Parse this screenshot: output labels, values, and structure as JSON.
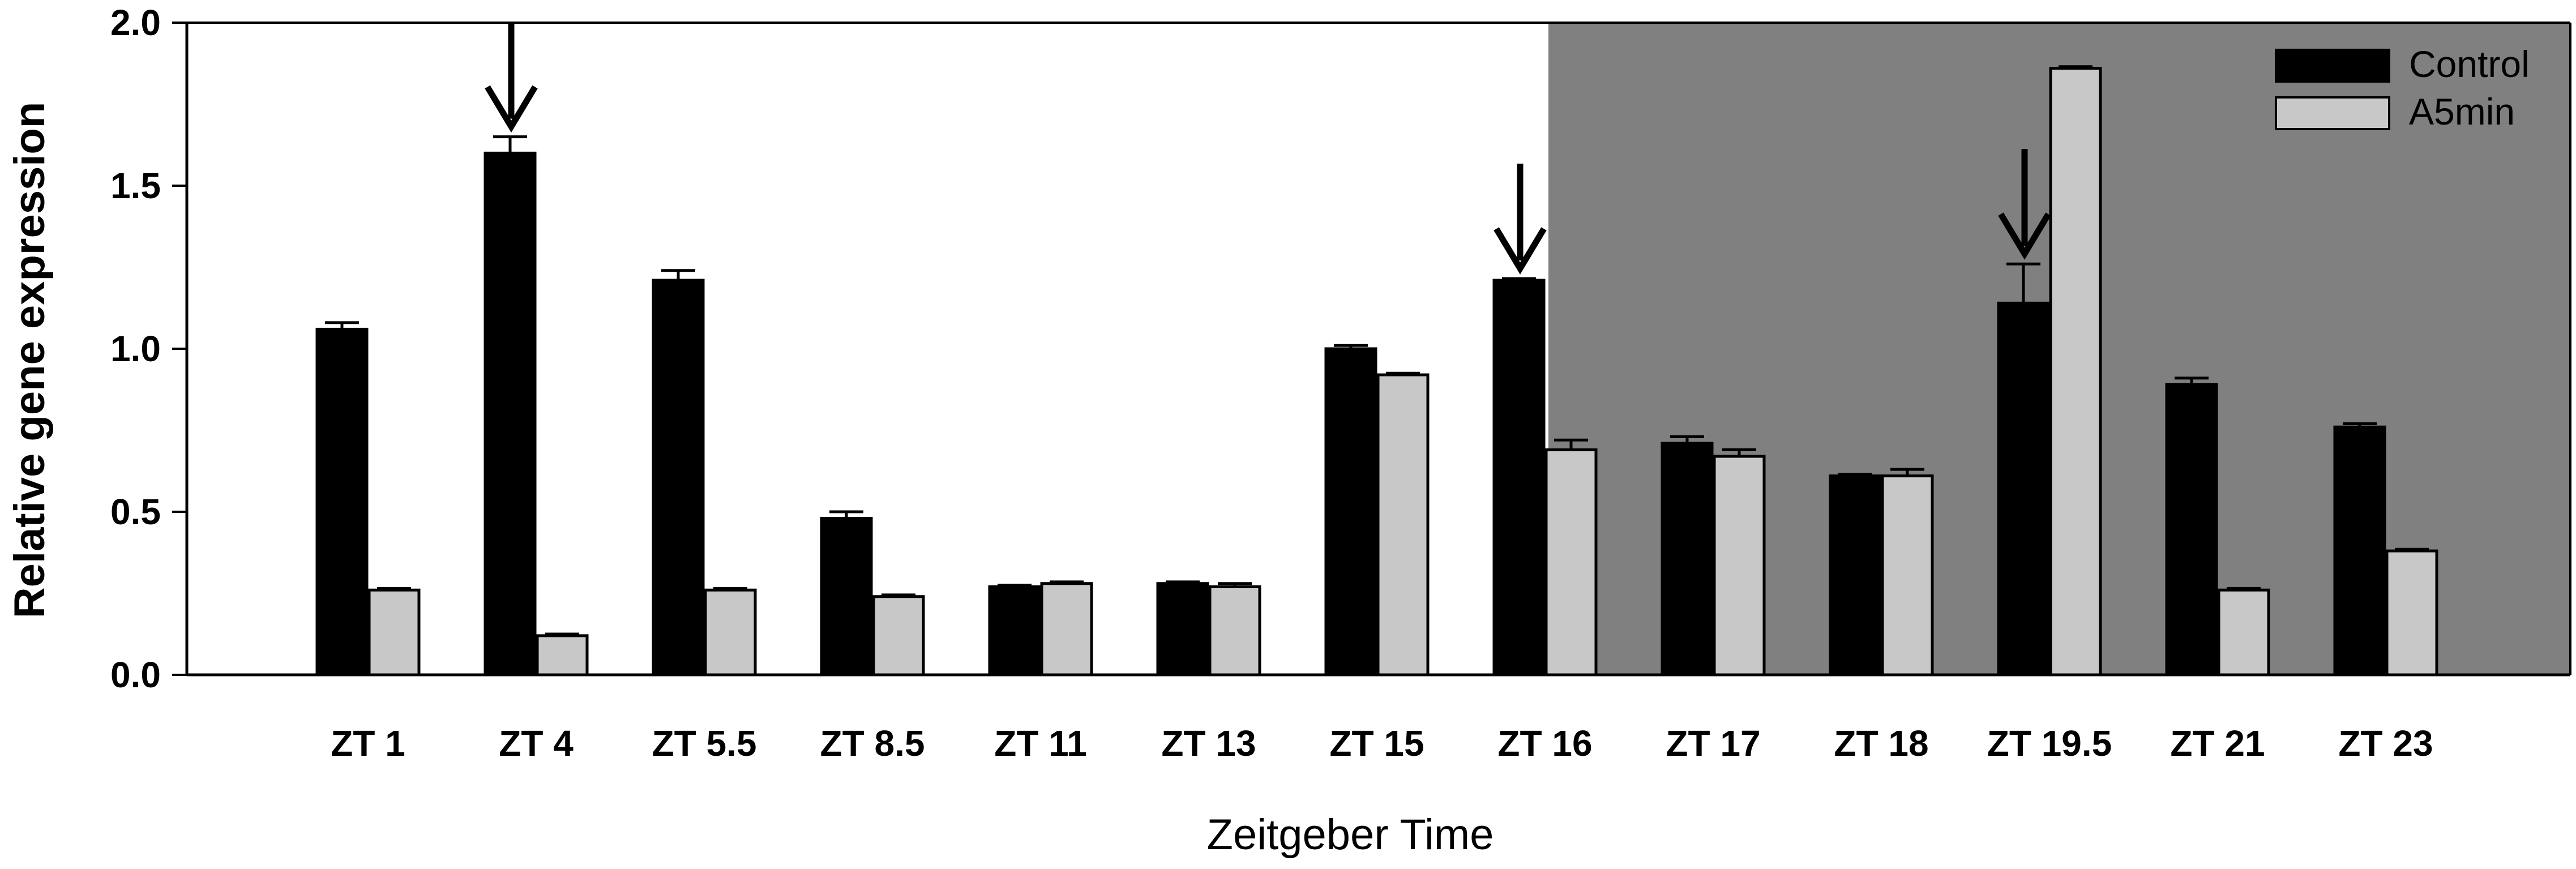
{
  "chart_data": {
    "type": "bar",
    "categories": [
      "ZT 1",
      "ZT 4",
      "ZT 5.5",
      "ZT 8.5",
      "ZT 11",
      "ZT 13",
      "ZT 15",
      "ZT 16",
      "ZT 17",
      "ZT 18",
      "ZT 19.5",
      "ZT 21",
      "ZT 23"
    ],
    "series": [
      {
        "name": "Control",
        "color": "#000000",
        "values": [
          1.06,
          1.6,
          1.21,
          0.48,
          0.27,
          0.28,
          1.0,
          1.21,
          0.71,
          0.61,
          1.14,
          0.89,
          0.76
        ],
        "errors": [
          0.02,
          0.05,
          0.03,
          0.02,
          0.005,
          0.005,
          0.01,
          0.005,
          0.02,
          0.005,
          0.12,
          0.02,
          0.01
        ]
      },
      {
        "name": "A5min",
        "color": "#c8c8c8",
        "values": [
          0.26,
          0.12,
          0.26,
          0.24,
          0.28,
          0.27,
          0.92,
          0.69,
          0.67,
          0.61,
          1.86,
          0.26,
          0.38
        ],
        "errors": [
          0.005,
          0.005,
          0.005,
          0.005,
          0.005,
          0.01,
          0.005,
          0.03,
          0.02,
          0.02,
          0.005,
          0.005,
          0.005
        ]
      }
    ],
    "title": "",
    "xlabel": "Zeitgeber Time",
    "ylabel": "Relative gene expression",
    "ylim": [
      0,
      2.0
    ],
    "yticks": [
      0.0,
      0.5,
      1.0,
      1.5,
      2.0
    ],
    "ytick_labels": [
      "0.0",
      "0.5",
      "1.0",
      "1.5",
      "2.0"
    ],
    "arrows_at": [
      "ZT 4",
      "ZT 16",
      "ZT 19.5"
    ],
    "dark_phase_start_category": "ZT 16",
    "dark_phase_color": "#808080",
    "legend_placement": "top-right",
    "grid": false
  }
}
